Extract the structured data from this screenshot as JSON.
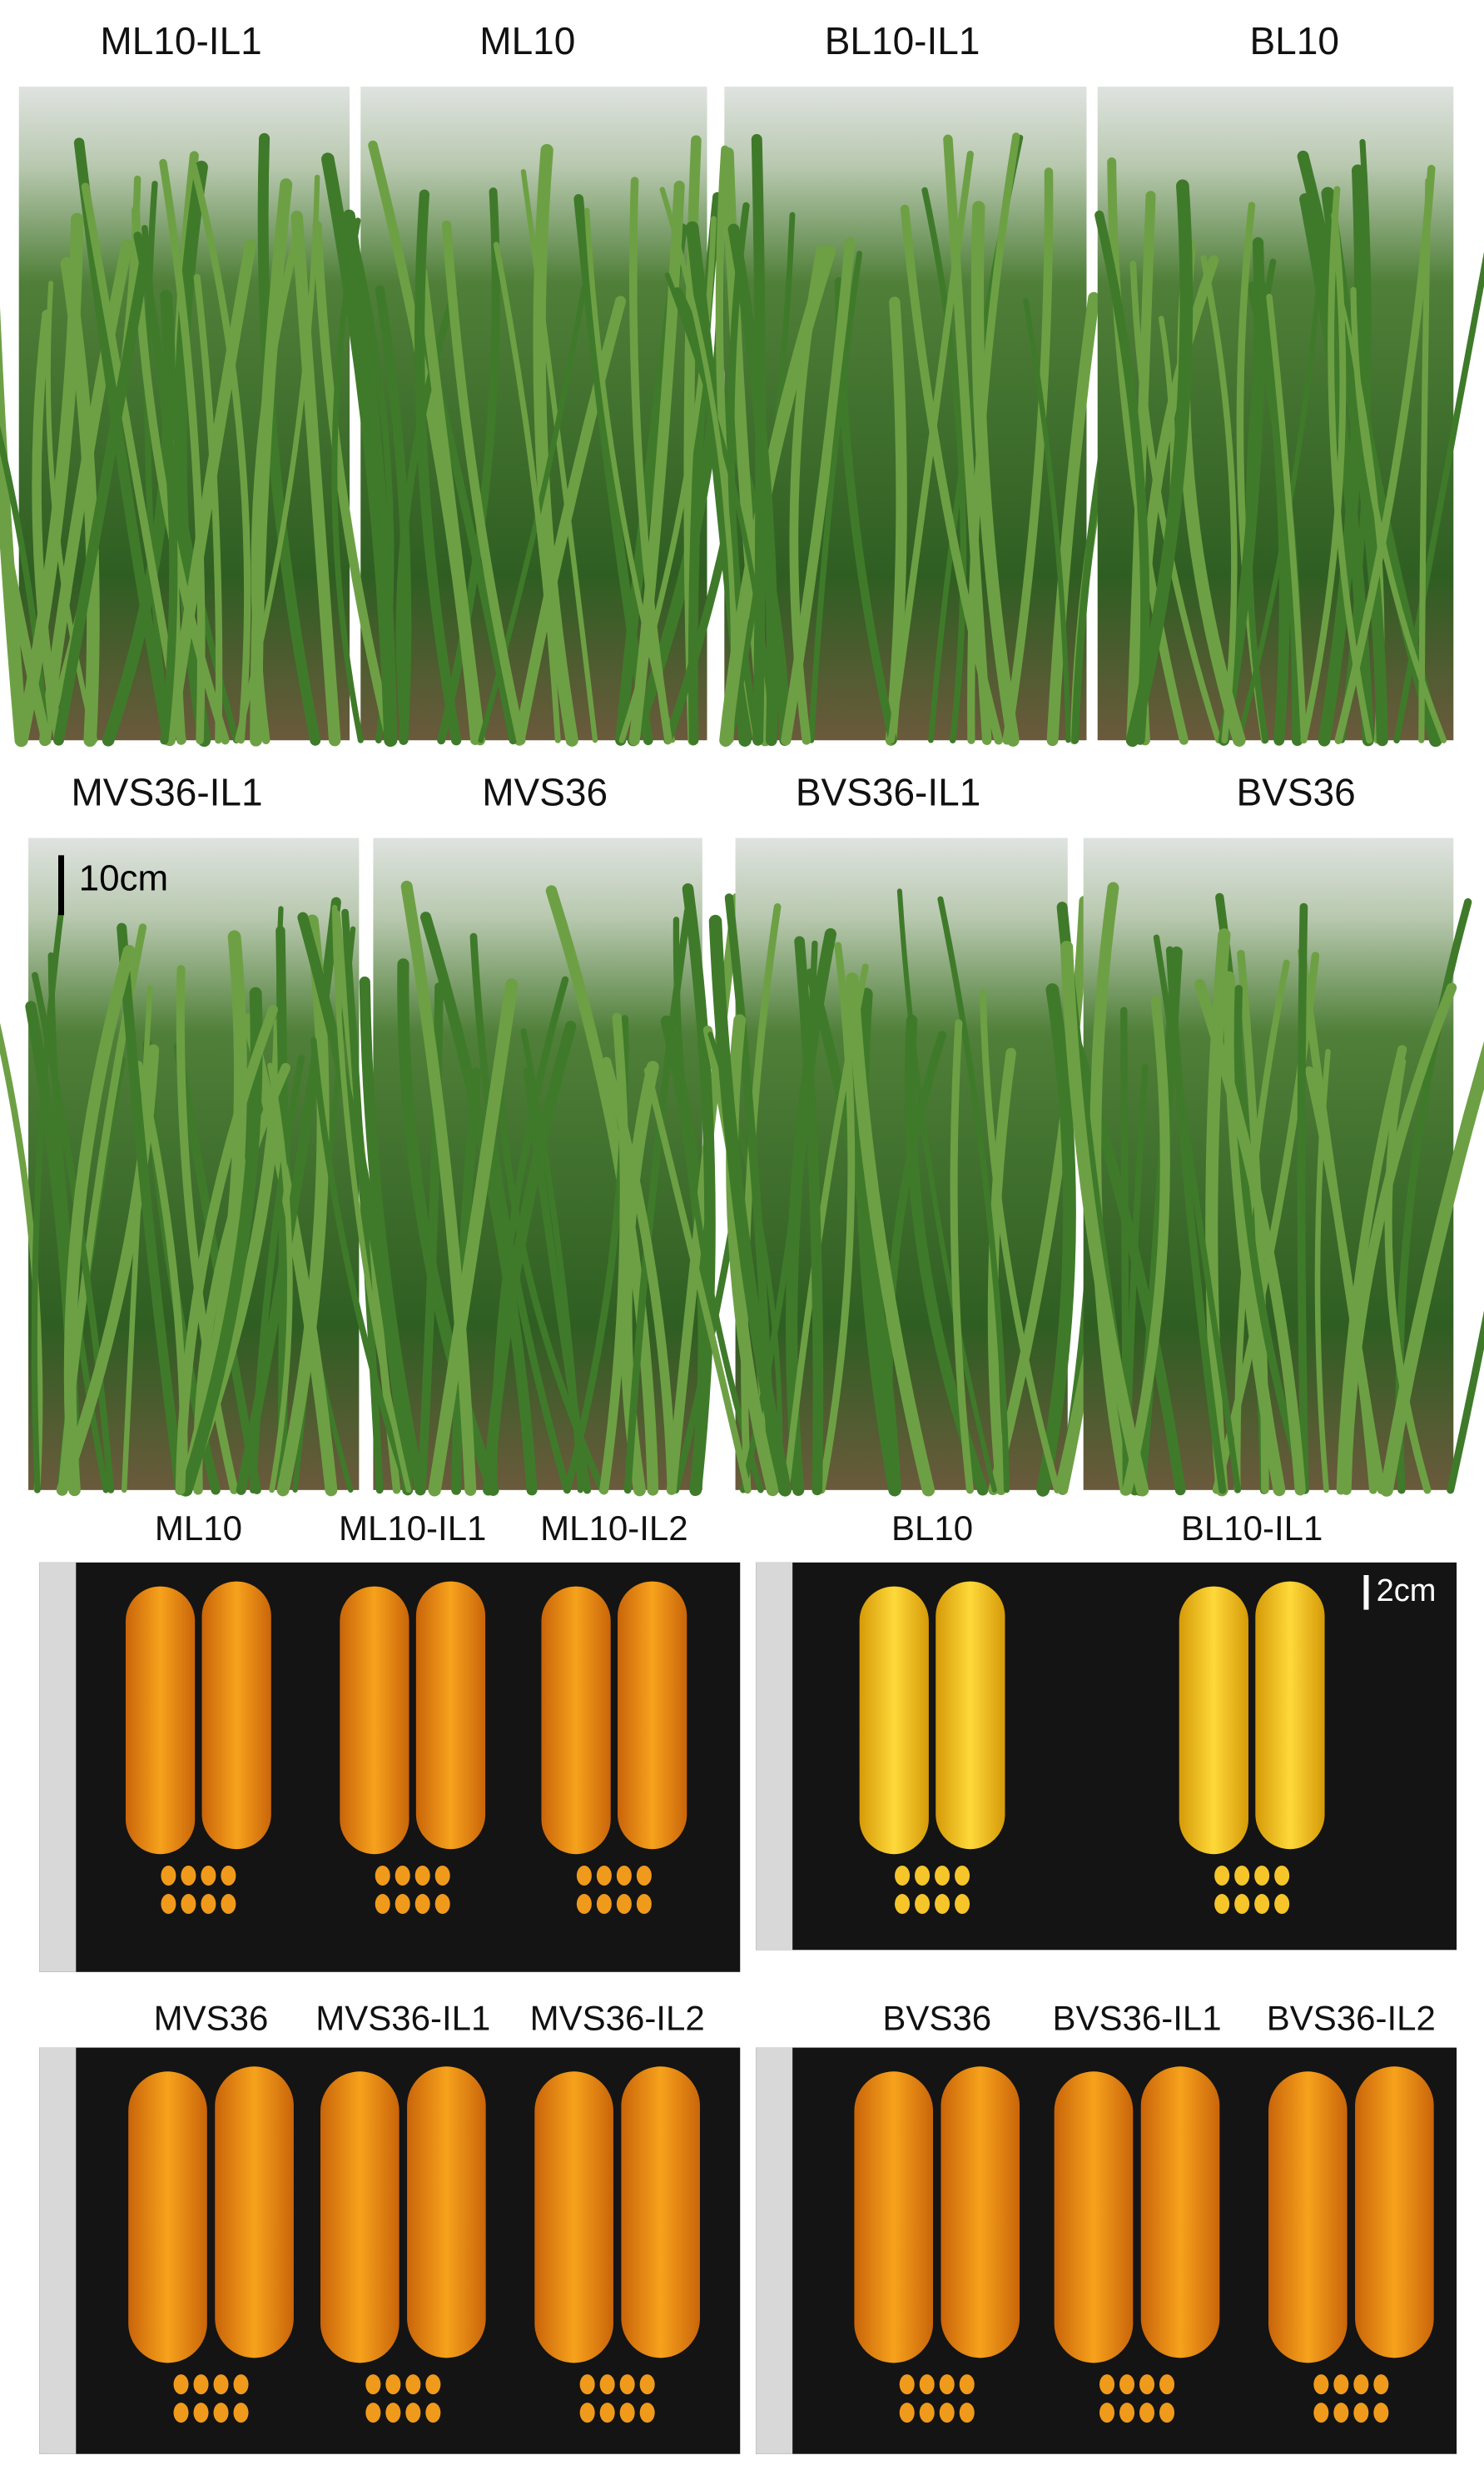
{
  "field_rows": [
    {
      "labels": [
        "ML10-IL1",
        "ML10",
        "BL10-IL1",
        "BL10"
      ]
    },
    {
      "labels": [
        "MVS36-IL1",
        "MVS36",
        "BVS36-IL1",
        "BVS36"
      ]
    }
  ],
  "field_scale_bar": "10cm",
  "ear_panels": [
    {
      "labels": [
        "ML10",
        "ML10-IL1",
        "ML10-IL2"
      ]
    },
    {
      "labels": [
        "BL10",
        "BL10-IL1"
      ],
      "scale_bar": "2cm"
    },
    {
      "labels": [
        "MVS36",
        "MVS36-IL1",
        "MVS36-IL2"
      ]
    },
    {
      "labels": [
        "BVS36",
        "BVS36-IL1",
        "BVS36-IL2"
      ]
    }
  ]
}
